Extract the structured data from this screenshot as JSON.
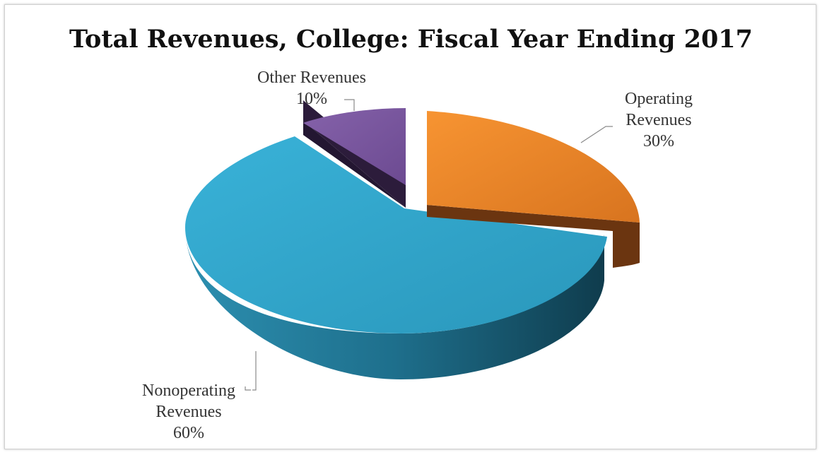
{
  "chart_data": {
    "type": "pie",
    "title": "Total Revenues, College: Fiscal Year Ending 2017",
    "slices": [
      {
        "name": "Other Revenues",
        "label_lines": [
          "Other Revenues"
        ],
        "pct_label": "10%",
        "value": 10,
        "top_color": "#7a55a0",
        "side_color": "#3d2950"
      },
      {
        "name": "Operating Revenues",
        "label_lines": [
          "Operating",
          "Revenues"
        ],
        "pct_label": "30%",
        "value": 30,
        "top_color": "#f08a2a",
        "side_color": "#6e3a0e"
      },
      {
        "name": "Nonoperating Revenues",
        "label_lines": [
          "Nonoperating",
          "Revenues"
        ],
        "pct_label": "60%",
        "value": 60,
        "top_color": "#2f9fc4",
        "side_color": "#1d6680"
      }
    ],
    "legend": "none",
    "style": "3d-exploded"
  }
}
